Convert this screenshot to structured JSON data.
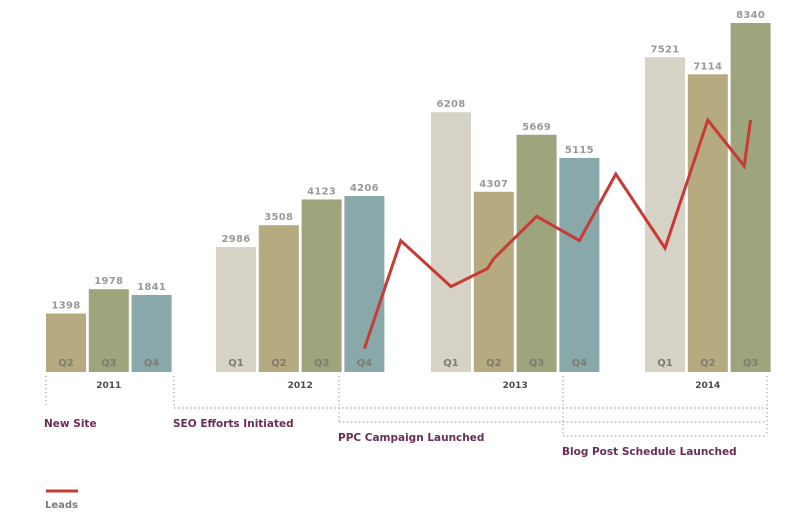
{
  "chart_data": {
    "type": "bar",
    "title": "",
    "xlabel": "",
    "ylabel": "",
    "ylim": [
      0,
      8340
    ],
    "grid": false,
    "colors": {
      "Q1": "#d6d2c6",
      "Q2": "#b6aa80",
      "Q3": "#9ea47c",
      "Q4": "#88a8aa",
      "line": "#c83a35",
      "annotation": "#6b2d55"
    },
    "groups": [
      {
        "year": "2011",
        "bars": [
          {
            "quarter": "Q2",
            "value": 1398
          },
          {
            "quarter": "Q3",
            "value": 1978
          },
          {
            "quarter": "Q4",
            "value": 1841
          }
        ]
      },
      {
        "year": "2012",
        "bars": [
          {
            "quarter": "Q1",
            "value": 2986
          },
          {
            "quarter": "Q2",
            "value": 3508
          },
          {
            "quarter": "Q3",
            "value": 4123
          },
          {
            "quarter": "Q4",
            "value": 4206
          }
        ]
      },
      {
        "year": "2013",
        "bars": [
          {
            "quarter": "Q1",
            "value": 6208
          },
          {
            "quarter": "Q2",
            "value": 4307
          },
          {
            "quarter": "Q3",
            "value": 5669
          },
          {
            "quarter": "Q4",
            "value": 5115
          }
        ]
      },
      {
        "year": "2014",
        "bars": [
          {
            "quarter": "Q1",
            "value": 7521
          },
          {
            "quarter": "Q2",
            "value": 7114
          },
          {
            "quarter": "Q3",
            "value": 8340
          }
        ]
      }
    ],
    "series": [
      {
        "name": "Leads",
        "type": "line",
        "points": [
          {
            "year": "2012",
            "quarter": "Q4",
            "value": 560
          },
          {
            "year": "2012",
            "quarter": "Q4.5",
            "value": 3140
          },
          {
            "year": "2013",
            "quarter": "Q1",
            "value": 2040
          },
          {
            "year": "2013",
            "quarter": "Q1.5",
            "value": 2470
          },
          {
            "year": "2013",
            "quarter": "Q2",
            "value": 2710
          },
          {
            "year": "2013",
            "quarter": "Q3",
            "value": 3720
          },
          {
            "year": "2013",
            "quarter": "Q4",
            "value": 3140
          },
          {
            "year": "2013",
            "quarter": "Q4.5",
            "value": 4730
          },
          {
            "year": "2014",
            "quarter": "Q1",
            "value": 2960
          },
          {
            "year": "2014",
            "quarter": "Q2",
            "value": 6020
          },
          {
            "year": "2014",
            "quarter": "Q2.5",
            "value": 4920
          },
          {
            "year": "2014",
            "quarter": "Q3",
            "value": 6020
          }
        ]
      }
    ],
    "annotations": [
      {
        "label": "New Site"
      },
      {
        "label": "SEO Efforts Initiated"
      },
      {
        "label": "PPC Campaign Launched"
      },
      {
        "label": "Blog Post Schedule Launched"
      }
    ],
    "legend": {
      "position": "bottom-left",
      "entries": [
        {
          "label": "Leads"
        }
      ]
    }
  }
}
